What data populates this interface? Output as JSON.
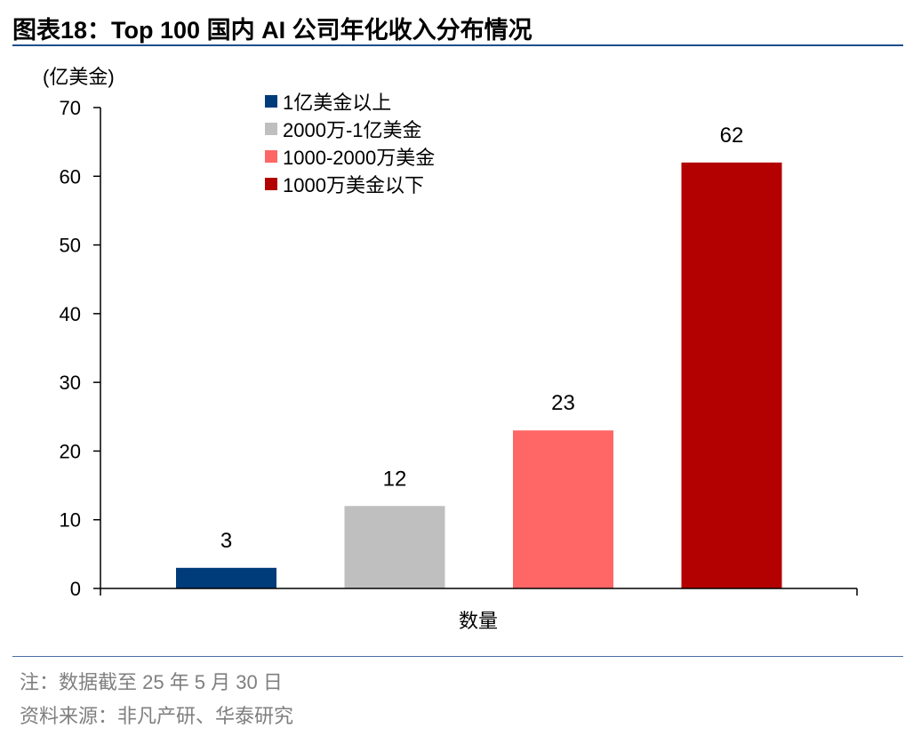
{
  "figure": {
    "label": "图表18：",
    "title": "Top 100 国内 AI 公司年化收入分布情况"
  },
  "footnotes": {
    "note": "注：数据截至 25 年 5 月 30 日",
    "source": "资料来源：非凡产研、华泰研究"
  },
  "chart_data": {
    "type": "bar",
    "ylabel": "(亿美金)",
    "xlabel": "数量",
    "ylim": [
      0,
      70
    ],
    "yticks": [
      0,
      10,
      20,
      30,
      40,
      50,
      60,
      70
    ],
    "legend_position": "top-left",
    "series": [
      {
        "name": "1亿美金以上",
        "value": 3,
        "color": "#003b7a"
      },
      {
        "name": "2000万-1亿美金",
        "value": 12,
        "color": "#bfbfbf"
      },
      {
        "name": "1000-2000万美金",
        "value": 23,
        "color": "#ff6666"
      },
      {
        "name": "1000万美金以下",
        "value": 62,
        "color": "#b30000"
      }
    ]
  }
}
